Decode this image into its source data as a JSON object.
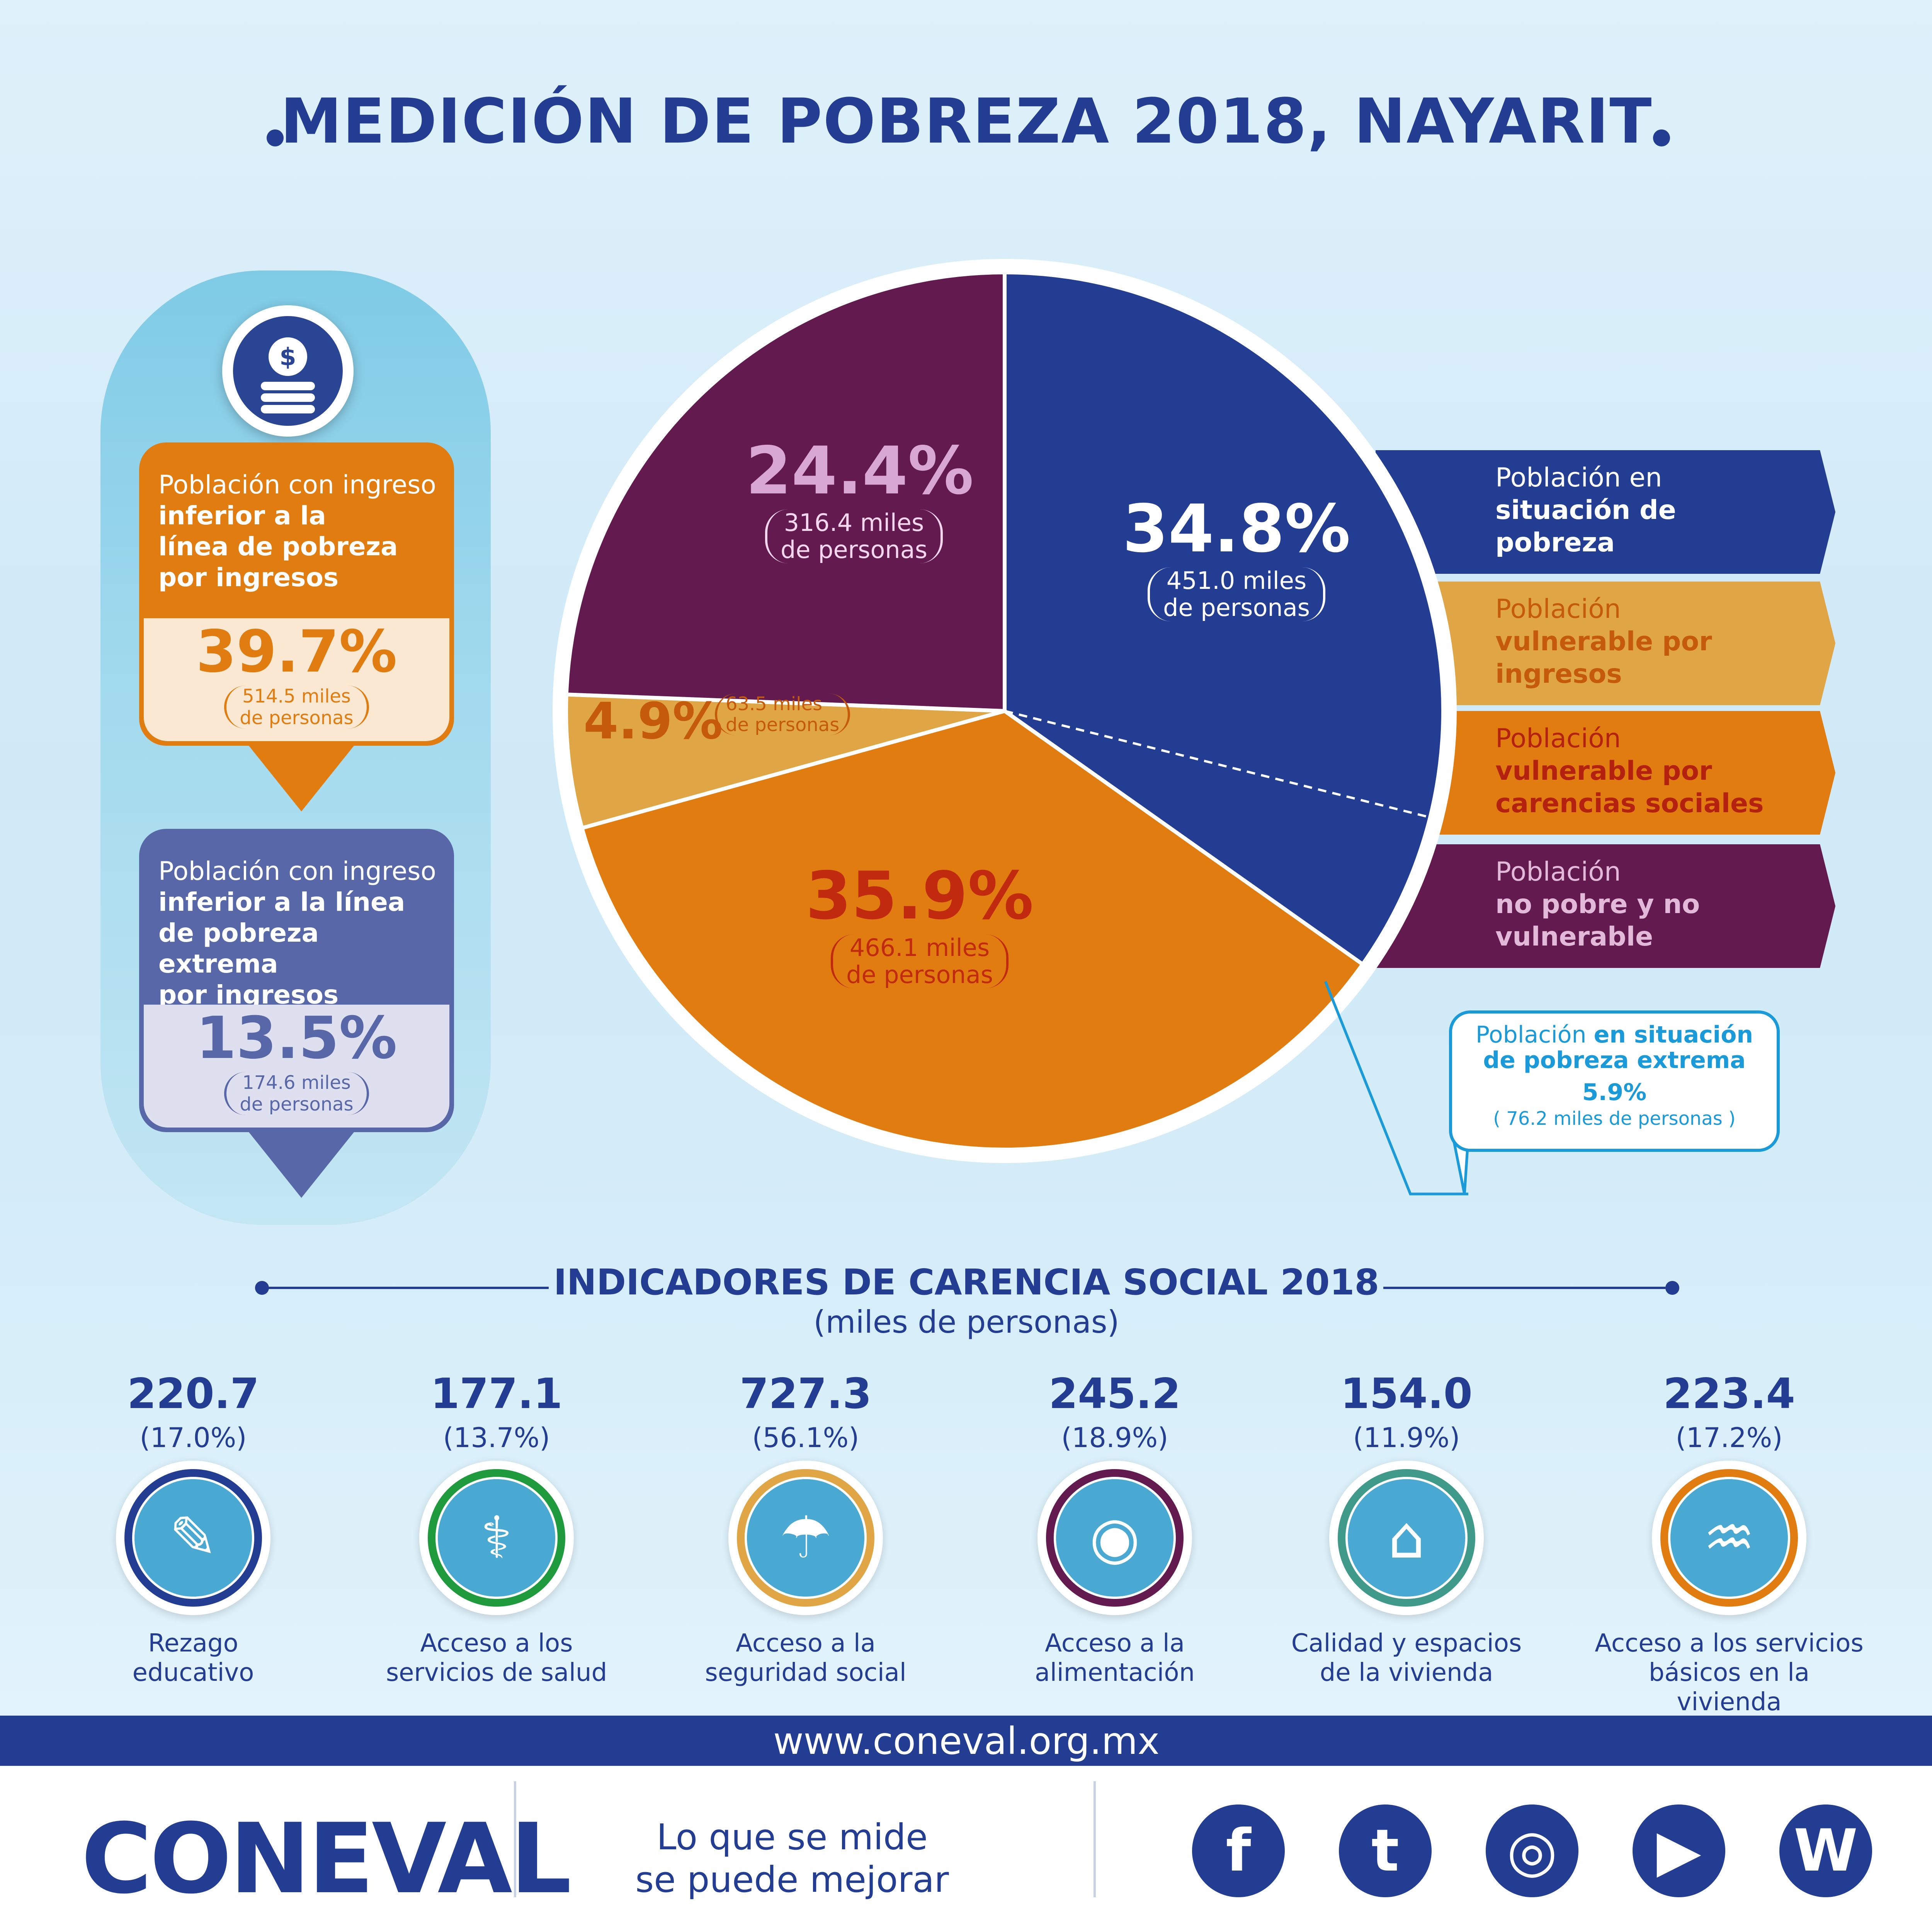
{
  "title": "MEDICIÓN DE POBREZA 2018, NAYARIT",
  "left_panel": {
    "card1": {
      "line1": "Población con ingreso",
      "line2": "inferior a la",
      "line3": "línea de pobreza",
      "line4": "por ingresos",
      "value": "39.7%",
      "sub1": "514.5 miles",
      "sub2": "de personas"
    },
    "card2": {
      "line1": "Población con ingreso",
      "line2": "inferior a la línea",
      "line3": "de pobreza extrema",
      "line4": "por ingresos",
      "value": "13.5%",
      "sub1": "174.6 miles",
      "sub2": "de personas"
    }
  },
  "chart_data": {
    "type": "pie",
    "title": "",
    "slices": [
      {
        "name": "Población en situación de pobreza",
        "value": 34.8,
        "label": "34.8%",
        "sub1": "451.0 miles",
        "sub2": "de personas",
        "color": "#233d93"
      },
      {
        "name": "Población vulnerable por carencias sociales",
        "value": 35.9,
        "label": "35.9%",
        "sub1": "466.1 miles",
        "sub2": "de personas",
        "color": "#e07c10"
      },
      {
        "name": "Población vulnerable por ingresos",
        "value": 4.9,
        "label": "4.9%",
        "sub1": "63.5 miles",
        "sub2": "de personas",
        "color": "#e0a545"
      },
      {
        "name": "Población no pobre y no vulnerable",
        "value": 24.4,
        "label": "24.4%",
        "sub1": "316.4 miles",
        "sub2": "de personas",
        "color": "#621a4f"
      }
    ],
    "extreme_poverty_share": 5.9
  },
  "legend": [
    {
      "l1": "Población en",
      "l2": "situación de",
      "l3": "pobreza",
      "color": "#233d93",
      "text": "#ffffff",
      "bold": "#ffffff"
    },
    {
      "l1": "Población",
      "l2": "vulnerable por",
      "l3": "ingresos",
      "color": "#e0a545",
      "text": "#c55a0c",
      "bold": "#c55a0c"
    },
    {
      "l1": "Población",
      "l2": "vulnerable por",
      "l3": "carencias sociales",
      "color": "#e07c10",
      "text": "#b5210f",
      "bold": "#b5210f"
    },
    {
      "l1": "Población",
      "l2": "no pobre y no",
      "l3": "vulnerable",
      "color": "#621a4f",
      "text": "#e3b9da",
      "bold": "#e3b9da"
    }
  ],
  "extreme_box": {
    "l1a": "Población ",
    "l1b": "en situación",
    "l2": "de pobreza extrema",
    "value": "5.9%",
    "sub": "( 76.2 miles de personas )"
  },
  "indicators": {
    "heading": "INDICADORES DE CARENCIA SOCIAL 2018",
    "subheading": "(miles de personas)",
    "items": [
      {
        "value": "220.7",
        "pct": "(17.0%)",
        "l1": "Rezago",
        "l2": "educativo",
        "ring": "#233d93",
        "icon": "pencil-icon",
        "glyph": "✎"
      },
      {
        "value": "177.1",
        "pct": "(13.7%)",
        "l1": "Acceso a los",
        "l2": "servicios de salud",
        "ring": "#1f9a3c",
        "icon": "doctor-icon",
        "glyph": "⚕"
      },
      {
        "value": "727.3",
        "pct": "(56.1%)",
        "l1": "Acceso a la",
        "l2": "seguridad social",
        "ring": "#e0a545",
        "icon": "family-hands-icon",
        "glyph": "☂"
      },
      {
        "value": "245.2",
        "pct": "(18.9%)",
        "l1": "Acceso a la",
        "l2": "alimentación",
        "ring": "#621a4f",
        "icon": "plate-cutlery-icon",
        "glyph": "◉"
      },
      {
        "value": "154.0",
        "pct": "(11.9%)",
        "l1": "Calidad y espacios",
        "l2": "de la vivienda",
        "ring": "#3f9a8a",
        "icon": "house-hands-icon",
        "glyph": "⌂"
      },
      {
        "value": "223.4",
        "pct": "(17.2%)",
        "l1": "Acceso a los servicios",
        "l2": "básicos en la vivienda",
        "ring": "#e07c10",
        "icon": "water-tap-icon",
        "glyph": "♒"
      }
    ]
  },
  "footer": {
    "url": "www.coneval.org.mx",
    "logo": "CONEVAL",
    "slogan1": "Lo que se mide",
    "slogan2": "se puede mejorar",
    "social": [
      {
        "icon": "facebook-icon",
        "glyph": "f"
      },
      {
        "icon": "twitter-icon",
        "glyph": "t"
      },
      {
        "icon": "instagram-icon",
        "glyph": "◎"
      },
      {
        "icon": "youtube-icon",
        "glyph": "▶"
      },
      {
        "icon": "wordpress-icon",
        "glyph": "W"
      }
    ]
  }
}
